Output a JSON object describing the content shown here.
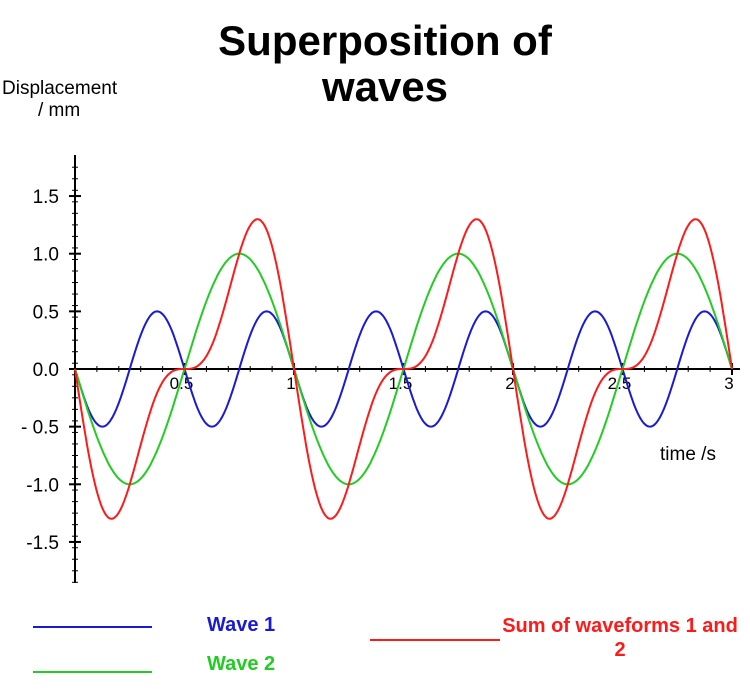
{
  "chart_data": {
    "type": "line",
    "title": "Superposition of waves",
    "ylabel": [
      "Displacement",
      "/ mm"
    ],
    "xlabel": "time /s",
    "xlim": [
      0,
      3
    ],
    "ylim": [
      -1.8,
      1.8
    ],
    "x_ticks": [
      "0.5",
      "1",
      "1.5",
      "2",
      "2.5",
      "3"
    ],
    "y_ticks": [
      "1.5",
      "1.0",
      "0.5",
      "0.0",
      "- 0.5",
      "-1.0",
      "-1.5"
    ],
    "x_tick_values": [
      0.5,
      1,
      1.5,
      2,
      2.5,
      3
    ],
    "y_tick_values": [
      1.5,
      1.0,
      0.5,
      0.0,
      -0.5,
      -1.0,
      -1.5
    ],
    "series": [
      {
        "name": "Wave 1",
        "color": "#1a1ad6",
        "amplitude": 0.5,
        "frequency": 2,
        "phase_shift": 0.5
      },
      {
        "name": "Wave 2",
        "color": "#22cc22",
        "amplitude": 1.0,
        "frequency": 1,
        "phase_shift": 0.5
      },
      {
        "name": "Sum of waveforms 1 and 2",
        "color": "#ff1a1a",
        "sum_of": [
          "Wave 1",
          "Wave 2"
        ]
      }
    ],
    "grid": false,
    "legend": "bottom"
  }
}
